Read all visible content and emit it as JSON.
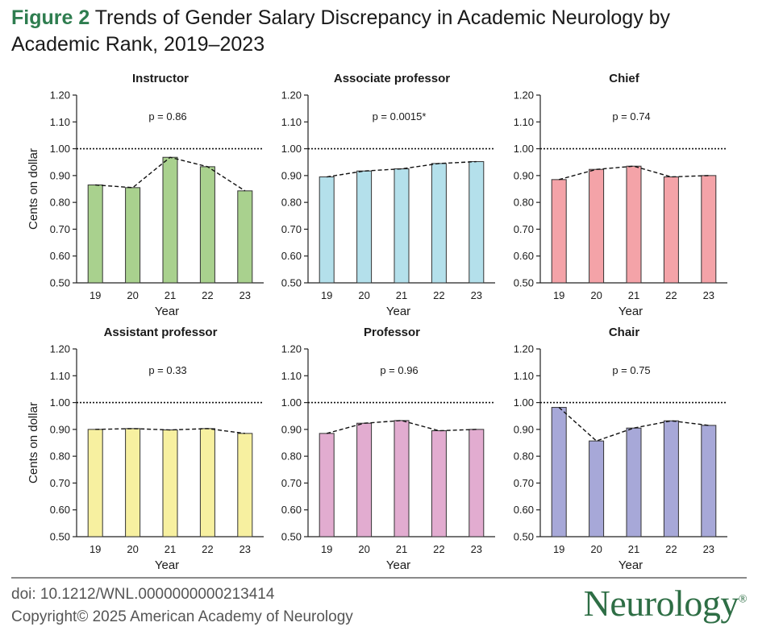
{
  "figure": {
    "label": "Figure 2",
    "title": "Trends of Gender Salary Discrepancy in Academic Neurology by Academic Rank, 2019–2023"
  },
  "footer": {
    "doi": "doi: 10.1212/WNL.0000000000213414",
    "copyright": "Copyright© 2025 American Academy of Neurology",
    "brand": "Neurology",
    "brand_mark": "®"
  },
  "chart_data": [
    {
      "type": "bar",
      "title": "Instructor",
      "annotation": "p = 0.86",
      "categories": [
        "19",
        "20",
        "21",
        "22",
        "23"
      ],
      "values": [
        0.865,
        0.855,
        0.968,
        0.933,
        0.843
      ],
      "xlabel": "Year",
      "ylabel": "Cents on dollar",
      "ylim": [
        0.5,
        1.2
      ],
      "yticks": [
        "0.50",
        "0.60",
        "0.70",
        "0.80",
        "0.90",
        "1.00",
        "1.10",
        "1.20"
      ],
      "reference_line": 1.0,
      "trend_line": "dashed",
      "color": "#a9d18e"
    },
    {
      "type": "bar",
      "title": "Associate professor",
      "annotation": "p = 0.0015*",
      "categories": [
        "19",
        "20",
        "21",
        "22",
        "23"
      ],
      "values": [
        0.895,
        0.917,
        0.925,
        0.945,
        0.952
      ],
      "xlabel": "Year",
      "ylabel": "",
      "ylim": [
        0.5,
        1.2
      ],
      "yticks": [
        "0.50",
        "0.60",
        "0.70",
        "0.80",
        "0.90",
        "1.00",
        "1.10",
        "1.20"
      ],
      "reference_line": 1.0,
      "trend_line": "dashed",
      "color": "#b4e0eb"
    },
    {
      "type": "bar",
      "title": "Chief",
      "annotation": "p = 0.74",
      "categories": [
        "19",
        "20",
        "21",
        "22",
        "23"
      ],
      "values": [
        0.885,
        0.923,
        0.935,
        0.895,
        0.9
      ],
      "xlabel": "Year",
      "ylabel": "",
      "ylim": [
        0.5,
        1.2
      ],
      "yticks": [
        "0.50",
        "0.60",
        "0.70",
        "0.80",
        "0.90",
        "1.00",
        "1.10",
        "1.20"
      ],
      "reference_line": 1.0,
      "trend_line": "dashed",
      "color": "#f4a3a8"
    },
    {
      "type": "bar",
      "title": "Assistant professor",
      "annotation": "p = 0.33",
      "categories": [
        "19",
        "20",
        "21",
        "22",
        "23"
      ],
      "values": [
        0.9,
        0.903,
        0.898,
        0.903,
        0.885
      ],
      "xlabel": "Year",
      "ylabel": "Cents on dollar",
      "ylim": [
        0.5,
        1.2
      ],
      "yticks": [
        "0.50",
        "0.60",
        "0.70",
        "0.80",
        "0.90",
        "1.00",
        "1.10",
        "1.20"
      ],
      "reference_line": 1.0,
      "trend_line": "dashed",
      "color": "#f7f0a0"
    },
    {
      "type": "bar",
      "title": "Professor",
      "annotation": "p = 0.96",
      "categories": [
        "19",
        "20",
        "21",
        "22",
        "23"
      ],
      "values": [
        0.885,
        0.923,
        0.933,
        0.895,
        0.9
      ],
      "xlabel": "Year",
      "ylabel": "",
      "ylim": [
        0.5,
        1.2
      ],
      "yticks": [
        "0.50",
        "0.60",
        "0.70",
        "0.80",
        "0.90",
        "1.00",
        "1.10",
        "1.20"
      ],
      "reference_line": 1.0,
      "trend_line": "dashed",
      "color": "#e2acd0"
    },
    {
      "type": "bar",
      "title": "Chair",
      "annotation": "p = 0.75",
      "categories": [
        "19",
        "20",
        "21",
        "22",
        "23"
      ],
      "values": [
        0.982,
        0.857,
        0.905,
        0.932,
        0.915
      ],
      "xlabel": "Year",
      "ylabel": "",
      "ylim": [
        0.5,
        1.2
      ],
      "yticks": [
        "0.50",
        "0.60",
        "0.70",
        "0.80",
        "0.90",
        "1.00",
        "1.10",
        "1.20"
      ],
      "reference_line": 1.0,
      "trend_line": "dashed",
      "color": "#a7a8d8"
    }
  ]
}
